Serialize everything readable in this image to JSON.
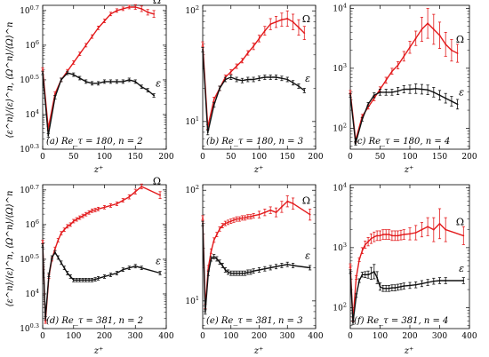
{
  "figure": {
    "ylabel": "⟨ε^n⟩/⟨ε⟩^n, ⟨Ω^n⟩/⟨Ω⟩^n",
    "xlabel": "z⁺",
    "colors": {
      "omega": "#e31a1c",
      "epsilon": "#111111"
    }
  },
  "chart_data": [
    {
      "type": "line",
      "panel_label": "(a) Re_τ = 180, n = 2",
      "xlim": [
        0,
        200
      ],
      "xticks": [
        0,
        50,
        100,
        150,
        200
      ],
      "yscale": "log",
      "ylim_log10": [
        3.0,
        7.15
      ],
      "yticks": [
        {
          "exp": "0.3",
          "log": 3.0
        },
        {
          "exp": "4",
          "log": 4.0
        },
        {
          "exp": "0.5",
          "log": 5.0
        },
        {
          "exp": "6",
          "log": 6.0
        },
        {
          "exp": "0.7",
          "log": 7.0
        }
      ],
      "series": [
        {
          "name": "Ω",
          "key": "omega",
          "x": [
            0,
            9,
            20,
            30,
            40,
            50,
            60,
            70,
            80,
            90,
            100,
            110,
            120,
            130,
            140,
            150,
            160,
            170,
            180
          ],
          "log10_y": [
            5.3,
            3.6,
            4.6,
            5.0,
            5.25,
            5.5,
            5.75,
            6.0,
            6.25,
            6.5,
            6.7,
            6.9,
            7.0,
            7.05,
            7.1,
            7.1,
            7.05,
            6.95,
            6.9
          ],
          "err": [
            0.05,
            0.05,
            0.05,
            0.05,
            0.05,
            0.05,
            0.05,
            0.05,
            0.05,
            0.05,
            0.05,
            0.05,
            0.05,
            0.05,
            0.05,
            0.07,
            0.08,
            0.08,
            0.1
          ]
        },
        {
          "name": "ε",
          "key": "epsilon",
          "x": [
            0,
            9,
            20,
            30,
            40,
            50,
            60,
            70,
            80,
            90,
            100,
            110,
            120,
            130,
            140,
            150,
            160,
            170,
            180
          ],
          "log10_y": [
            5.2,
            3.4,
            4.5,
            5.0,
            5.2,
            5.15,
            5.05,
            4.95,
            4.9,
            4.9,
            4.95,
            4.95,
            4.95,
            4.95,
            5.0,
            4.95,
            4.8,
            4.7,
            4.55
          ],
          "err": [
            0.05,
            0.05,
            0.05,
            0.05,
            0.05,
            0.05,
            0.05,
            0.05,
            0.05,
            0.05,
            0.05,
            0.05,
            0.05,
            0.05,
            0.05,
            0.05,
            0.05,
            0.05,
            0.05
          ]
        }
      ]
    },
    {
      "type": "line",
      "panel_label": "(b) Re_τ = 180, n = 3",
      "xlim": [
        0,
        200
      ],
      "xticks": [
        0,
        50,
        100,
        150,
        200
      ],
      "yscale": "log",
      "ylim_log10": [
        0.75,
        2.05
      ],
      "yticks": [
        {
          "exp": "1",
          "log": 1.0
        },
        {
          "exp": "2",
          "log": 2.0
        }
      ],
      "series": [
        {
          "name": "Ω",
          "key": "omega",
          "x": [
            0,
            9,
            20,
            30,
            40,
            50,
            60,
            70,
            80,
            90,
            100,
            110,
            120,
            130,
            140,
            150,
            160,
            170,
            180
          ],
          "log10_y": [
            1.7,
            0.95,
            1.2,
            1.3,
            1.4,
            1.45,
            1.5,
            1.55,
            1.62,
            1.68,
            1.75,
            1.82,
            1.88,
            1.9,
            1.92,
            1.93,
            1.9,
            1.85,
            1.8
          ],
          "err": [
            0.02,
            0.02,
            0.02,
            0.02,
            0.02,
            0.02,
            0.02,
            0.02,
            0.02,
            0.03,
            0.03,
            0.04,
            0.05,
            0.05,
            0.06,
            0.07,
            0.07,
            0.07,
            0.06
          ]
        },
        {
          "name": "ε",
          "key": "epsilon",
          "x": [
            0,
            9,
            20,
            30,
            40,
            50,
            60,
            70,
            80,
            90,
            100,
            110,
            120,
            130,
            140,
            150,
            160,
            170,
            180
          ],
          "log10_y": [
            1.65,
            0.9,
            1.15,
            1.3,
            1.38,
            1.4,
            1.38,
            1.37,
            1.38,
            1.38,
            1.39,
            1.4,
            1.4,
            1.4,
            1.39,
            1.38,
            1.35,
            1.32,
            1.28
          ],
          "err": [
            0.02,
            0.02,
            0.02,
            0.02,
            0.02,
            0.02,
            0.02,
            0.02,
            0.02,
            0.02,
            0.02,
            0.02,
            0.02,
            0.02,
            0.02,
            0.02,
            0.02,
            0.02,
            0.02
          ]
        }
      ]
    },
    {
      "type": "line",
      "panel_label": "(c) Re_τ = 180, n = 4",
      "xlim": [
        0,
        200
      ],
      "xticks": [
        0,
        50,
        100,
        150,
        200
      ],
      "yscale": "log",
      "ylim_log10": [
        1.65,
        4.05
      ],
      "yticks": [
        {
          "exp": "2",
          "log": 2.0
        },
        {
          "exp": "3",
          "log": 3.0
        },
        {
          "exp": "4",
          "log": 4.0
        }
      ],
      "series": [
        {
          "name": "Ω",
          "key": "omega",
          "x": [
            0,
            9,
            20,
            30,
            40,
            50,
            60,
            70,
            80,
            90,
            100,
            110,
            120,
            130,
            140,
            150,
            160,
            170,
            180
          ],
          "log10_y": [
            2.6,
            1.8,
            2.2,
            2.35,
            2.5,
            2.65,
            2.8,
            2.95,
            3.05,
            3.2,
            3.35,
            3.5,
            3.65,
            3.75,
            3.65,
            3.55,
            3.4,
            3.3,
            3.25
          ],
          "err": [
            0.03,
            0.03,
            0.03,
            0.03,
            0.04,
            0.04,
            0.05,
            0.05,
            0.06,
            0.08,
            0.1,
            0.12,
            0.2,
            0.25,
            0.25,
            0.22,
            0.2,
            0.18,
            0.15
          ]
        },
        {
          "name": "ε",
          "key": "epsilon",
          "x": [
            0,
            9,
            20,
            30,
            40,
            50,
            60,
            70,
            80,
            90,
            100,
            110,
            120,
            130,
            140,
            150,
            160,
            170,
            180
          ],
          "log10_y": [
            2.55,
            1.75,
            2.15,
            2.4,
            2.55,
            2.6,
            2.6,
            2.6,
            2.62,
            2.65,
            2.65,
            2.66,
            2.65,
            2.64,
            2.6,
            2.55,
            2.5,
            2.45,
            2.4
          ],
          "err": [
            0.03,
            0.03,
            0.03,
            0.03,
            0.04,
            0.05,
            0.05,
            0.05,
            0.06,
            0.06,
            0.07,
            0.08,
            0.08,
            0.08,
            0.08,
            0.08,
            0.08,
            0.08,
            0.08
          ]
        }
      ]
    },
    {
      "type": "line",
      "panel_label": "(d) Re_τ = 381, n = 2",
      "xlim": [
        0,
        400
      ],
      "xticks": [
        0,
        100,
        200,
        300,
        400
      ],
      "yscale": "log",
      "ylim_log10": [
        3.0,
        7.15
      ],
      "yticks": [
        {
          "exp": "0.3",
          "log": 3.0
        },
        {
          "exp": "4",
          "log": 4.0
        },
        {
          "exp": "0.5",
          "log": 5.0
        },
        {
          "exp": "6",
          "log": 6.0
        },
        {
          "exp": "0.7",
          "log": 7.0
        }
      ],
      "series": [
        {
          "name": "Ω",
          "key": "omega",
          "x": [
            0,
            9,
            20,
            30,
            40,
            50,
            60,
            70,
            80,
            90,
            100,
            110,
            120,
            130,
            140,
            150,
            160,
            170,
            180,
            200,
            220,
            240,
            260,
            280,
            300,
            320,
            380
          ],
          "log10_y": [
            5.5,
            3.2,
            4.5,
            5.0,
            5.3,
            5.55,
            5.75,
            5.85,
            5.95,
            6.0,
            6.1,
            6.15,
            6.2,
            6.25,
            6.3,
            6.35,
            6.4,
            6.42,
            6.45,
            6.5,
            6.55,
            6.6,
            6.7,
            6.8,
            6.95,
            7.1,
            6.85
          ],
          "err": [
            0.05,
            0.05,
            0.05,
            0.05,
            0.05,
            0.05,
            0.05,
            0.05,
            0.05,
            0.05,
            0.05,
            0.05,
            0.05,
            0.05,
            0.05,
            0.05,
            0.05,
            0.05,
            0.05,
            0.05,
            0.05,
            0.05,
            0.05,
            0.06,
            0.07,
            0.07,
            0.1
          ]
        },
        {
          "name": "ε",
          "key": "epsilon",
          "x": [
            0,
            9,
            20,
            30,
            40,
            50,
            60,
            70,
            80,
            90,
            100,
            110,
            120,
            130,
            140,
            150,
            160,
            170,
            180,
            200,
            220,
            240,
            260,
            280,
            300,
            320,
            380
          ],
          "log10_y": [
            5.4,
            3.3,
            4.55,
            5.05,
            5.2,
            5.05,
            4.9,
            4.75,
            4.6,
            4.5,
            4.4,
            4.4,
            4.4,
            4.4,
            4.4,
            4.4,
            4.4,
            4.42,
            4.45,
            4.5,
            4.55,
            4.6,
            4.7,
            4.75,
            4.8,
            4.75,
            4.6
          ],
          "err": [
            0.05,
            0.05,
            0.05,
            0.05,
            0.05,
            0.05,
            0.05,
            0.05,
            0.05,
            0.05,
            0.05,
            0.05,
            0.05,
            0.05,
            0.05,
            0.05,
            0.05,
            0.05,
            0.05,
            0.05,
            0.05,
            0.05,
            0.05,
            0.05,
            0.05,
            0.05,
            0.05
          ]
        }
      ]
    },
    {
      "type": "line",
      "panel_label": "(e) Re_τ = 381, n = 3",
      "xlim": [
        0,
        400
      ],
      "xticks": [
        0,
        100,
        200,
        300,
        400
      ],
      "yscale": "log",
      "ylim_log10": [
        0.75,
        2.05
      ],
      "yticks": [
        {
          "exp": "1",
          "log": 1.0
        },
        {
          "exp": "2",
          "log": 2.0
        }
      ],
      "series": [
        {
          "name": "Ω",
          "key": "omega",
          "x": [
            0,
            9,
            20,
            30,
            40,
            50,
            60,
            70,
            80,
            90,
            100,
            110,
            120,
            130,
            140,
            150,
            160,
            170,
            180,
            200,
            220,
            240,
            260,
            280,
            300,
            320,
            380
          ],
          "log10_y": [
            1.75,
            0.95,
            1.3,
            1.45,
            1.55,
            1.6,
            1.65,
            1.68,
            1.7,
            1.71,
            1.72,
            1.73,
            1.74,
            1.74,
            1.75,
            1.75,
            1.76,
            1.76,
            1.77,
            1.78,
            1.8,
            1.82,
            1.8,
            1.85,
            1.9,
            1.88,
            1.78
          ],
          "err": [
            0.02,
            0.02,
            0.02,
            0.02,
            0.02,
            0.02,
            0.02,
            0.02,
            0.02,
            0.02,
            0.02,
            0.02,
            0.02,
            0.02,
            0.02,
            0.02,
            0.02,
            0.02,
            0.02,
            0.03,
            0.03,
            0.03,
            0.04,
            0.05,
            0.05,
            0.05,
            0.05
          ]
        },
        {
          "name": "ε",
          "key": "epsilon",
          "x": [
            0,
            9,
            20,
            30,
            40,
            50,
            60,
            70,
            80,
            90,
            100,
            110,
            120,
            130,
            140,
            150,
            160,
            170,
            180,
            200,
            220,
            240,
            260,
            280,
            300,
            320,
            380
          ],
          "log10_y": [
            1.7,
            0.9,
            1.25,
            1.38,
            1.4,
            1.38,
            1.35,
            1.32,
            1.28,
            1.26,
            1.25,
            1.25,
            1.25,
            1.25,
            1.25,
            1.25,
            1.26,
            1.26,
            1.27,
            1.28,
            1.29,
            1.3,
            1.31,
            1.32,
            1.33,
            1.32,
            1.3
          ],
          "err": [
            0.02,
            0.02,
            0.02,
            0.02,
            0.02,
            0.02,
            0.02,
            0.02,
            0.02,
            0.02,
            0.02,
            0.02,
            0.02,
            0.02,
            0.02,
            0.02,
            0.02,
            0.02,
            0.02,
            0.02,
            0.02,
            0.02,
            0.02,
            0.02,
            0.02,
            0.02,
            0.02
          ]
        }
      ]
    },
    {
      "type": "line",
      "panel_label": "(f) Re_τ = 381, n = 4",
      "xlim": [
        0,
        400
      ],
      "xticks": [
        0,
        100,
        200,
        300,
        400
      ],
      "yscale": "log",
      "ylim_log10": [
        1.65,
        4.05
      ],
      "yticks": [
        {
          "exp": "2",
          "log": 2.0
        },
        {
          "exp": "3",
          "log": 3.0
        },
        {
          "exp": "4",
          "log": 4.0
        }
      ],
      "series": [
        {
          "name": "Ω",
          "key": "omega",
          "x": [
            0,
            9,
            20,
            30,
            40,
            50,
            60,
            70,
            80,
            90,
            100,
            110,
            120,
            130,
            140,
            150,
            160,
            170,
            180,
            200,
            220,
            240,
            260,
            280,
            300,
            320,
            380
          ],
          "log10_y": [
            2.7,
            1.8,
            2.5,
            2.8,
            2.95,
            3.05,
            3.1,
            3.15,
            3.18,
            3.2,
            3.2,
            3.22,
            3.22,
            3.22,
            3.2,
            3.2,
            3.2,
            3.21,
            3.22,
            3.23,
            3.25,
            3.3,
            3.35,
            3.3,
            3.4,
            3.3,
            3.2
          ],
          "err": [
            0.03,
            0.03,
            0.03,
            0.03,
            0.05,
            0.06,
            0.07,
            0.08,
            0.08,
            0.08,
            0.08,
            0.08,
            0.08,
            0.08,
            0.08,
            0.08,
            0.08,
            0.08,
            0.08,
            0.1,
            0.12,
            0.12,
            0.15,
            0.2,
            0.25,
            0.2,
            0.15
          ]
        },
        {
          "name": "ε",
          "key": "epsilon",
          "x": [
            0,
            9,
            20,
            30,
            40,
            50,
            60,
            70,
            80,
            90,
            100,
            110,
            120,
            130,
            140,
            150,
            160,
            170,
            180,
            200,
            220,
            240,
            260,
            280,
            300,
            320,
            380
          ],
          "log10_y": [
            2.6,
            1.75,
            2.2,
            2.45,
            2.55,
            2.55,
            2.55,
            2.57,
            2.6,
            2.5,
            2.35,
            2.32,
            2.32,
            2.32,
            2.33,
            2.33,
            2.34,
            2.35,
            2.36,
            2.37,
            2.38,
            2.4,
            2.42,
            2.44,
            2.45,
            2.45,
            2.45
          ],
          "err": [
            0.03,
            0.03,
            0.03,
            0.03,
            0.04,
            0.05,
            0.06,
            0.1,
            0.12,
            0.1,
            0.06,
            0.05,
            0.05,
            0.05,
            0.05,
            0.05,
            0.05,
            0.05,
            0.05,
            0.05,
            0.05,
            0.05,
            0.05,
            0.05,
            0.05,
            0.05,
            0.05
          ]
        }
      ]
    }
  ]
}
